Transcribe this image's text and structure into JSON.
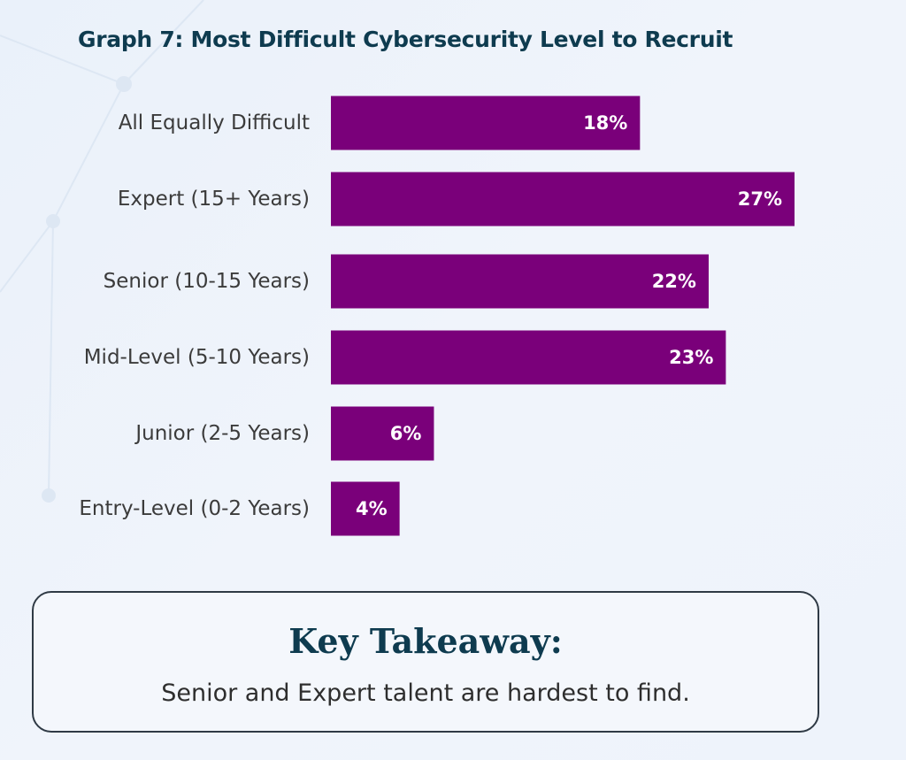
{
  "chart_data": {
    "type": "bar",
    "orientation": "horizontal",
    "title": "Graph 7: Most Difficult Cybersecurity Level to Recruit",
    "categories": [
      "All Equally Difficult",
      "Expert (15+ Years)",
      "Senior (10-15 Years)",
      "Mid-Level (5-10 Years)",
      "Junior (2-5 Years)",
      "Entry-Level (0-2 Years)"
    ],
    "values": [
      18,
      27,
      22,
      23,
      6,
      4
    ],
    "value_labels": [
      "18%",
      "27%",
      "22%",
      "23%",
      "6%",
      "4%"
    ],
    "unit": "%",
    "xlim": [
      0,
      27
    ],
    "grid": false,
    "legend": "none",
    "bar_color": "#7a007a"
  },
  "takeaway": {
    "title": "Key Takeaway:",
    "text": "Senior and Expert talent are hardest to find."
  }
}
